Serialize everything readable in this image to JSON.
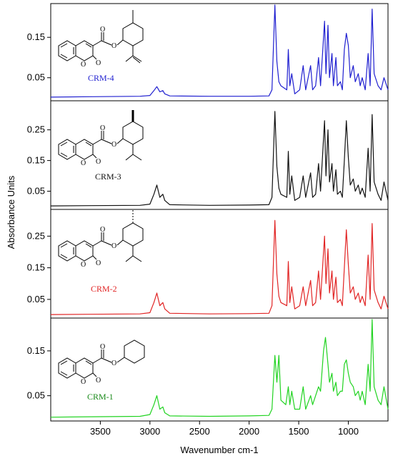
{
  "chart_data": {
    "type": "line",
    "xlabel": "Wavenumber cm-1",
    "ylabel": "Absorbance Units",
    "x_ticks": [
      3500,
      3000,
      2500,
      2000,
      1500,
      1000
    ],
    "xlim": [
      4000,
      600
    ],
    "panels": [
      {
        "name": "CRM-4",
        "color": "#1f1fd0",
        "ylim": [
          0.0,
          0.23
        ],
        "y_ticks": [
          0.05,
          0.15
        ],
        "y_tick_labels": [
          "0.05",
          "0.15"
        ],
        "points": [
          [
            4000,
            0.002
          ],
          [
            3600,
            0.003
          ],
          [
            3100,
            0.004
          ],
          [
            3000,
            0.006
          ],
          [
            2960,
            0.018
          ],
          [
            2930,
            0.028
          ],
          [
            2900,
            0.015
          ],
          [
            2870,
            0.018
          ],
          [
            2850,
            0.01
          ],
          [
            2800,
            0.005
          ],
          [
            2400,
            0.004
          ],
          [
            2000,
            0.004
          ],
          [
            1800,
            0.005
          ],
          [
            1770,
            0.02
          ],
          [
            1740,
            0.23
          ],
          [
            1720,
            0.09
          ],
          [
            1700,
            0.04
          ],
          [
            1680,
            0.03
          ],
          [
            1620,
            0.02
          ],
          [
            1605,
            0.12
          ],
          [
            1590,
            0.03
          ],
          [
            1570,
            0.06
          ],
          [
            1540,
            0.01
          ],
          [
            1490,
            0.02
          ],
          [
            1455,
            0.08
          ],
          [
            1430,
            0.02
          ],
          [
            1380,
            0.08
          ],
          [
            1360,
            0.02
          ],
          [
            1330,
            0.03
          ],
          [
            1300,
            0.1
          ],
          [
            1280,
            0.03
          ],
          [
            1240,
            0.19
          ],
          [
            1225,
            0.06
          ],
          [
            1205,
            0.18
          ],
          [
            1190,
            0.05
          ],
          [
            1165,
            0.11
          ],
          [
            1150,
            0.03
          ],
          [
            1125,
            0.1
          ],
          [
            1110,
            0.03
          ],
          [
            1080,
            0.04
          ],
          [
            1060,
            0.02
          ],
          [
            1040,
            0.12
          ],
          [
            1020,
            0.16
          ],
          [
            1000,
            0.13
          ],
          [
            980,
            0.05
          ],
          [
            950,
            0.08
          ],
          [
            930,
            0.04
          ],
          [
            900,
            0.06
          ],
          [
            880,
            0.03
          ],
          [
            860,
            0.05
          ],
          [
            830,
            0.02
          ],
          [
            800,
            0.11
          ],
          [
            780,
            0.03
          ],
          [
            760,
            0.22
          ],
          [
            740,
            0.06
          ],
          [
            700,
            0.03
          ],
          [
            670,
            0.02
          ],
          [
            640,
            0.05
          ],
          [
            600,
            0.02
          ]
        ]
      },
      {
        "name": "CRM-3",
        "color": "#111111",
        "ylim": [
          0.0,
          0.34
        ],
        "y_ticks": [
          0.05,
          0.15,
          0.25
        ],
        "y_tick_labels": [
          "0.05",
          "0.15",
          "0.25"
        ],
        "points": [
          [
            4000,
            0.002
          ],
          [
            3600,
            0.003
          ],
          [
            3100,
            0.004
          ],
          [
            3000,
            0.008
          ],
          [
            2960,
            0.04
          ],
          [
            2930,
            0.07
          ],
          [
            2900,
            0.03
          ],
          [
            2870,
            0.04
          ],
          [
            2850,
            0.02
          ],
          [
            2800,
            0.006
          ],
          [
            2400,
            0.004
          ],
          [
            2000,
            0.005
          ],
          [
            1800,
            0.006
          ],
          [
            1770,
            0.03
          ],
          [
            1740,
            0.31
          ],
          [
            1720,
            0.13
          ],
          [
            1700,
            0.06
          ],
          [
            1680,
            0.04
          ],
          [
            1620,
            0.03
          ],
          [
            1605,
            0.18
          ],
          [
            1590,
            0.04
          ],
          [
            1570,
            0.1
          ],
          [
            1540,
            0.02
          ],
          [
            1490,
            0.03
          ],
          [
            1455,
            0.1
          ],
          [
            1430,
            0.03
          ],
          [
            1380,
            0.11
          ],
          [
            1360,
            0.03
          ],
          [
            1330,
            0.04
          ],
          [
            1300,
            0.14
          ],
          [
            1280,
            0.05
          ],
          [
            1240,
            0.28
          ],
          [
            1225,
            0.1
          ],
          [
            1205,
            0.25
          ],
          [
            1190,
            0.08
          ],
          [
            1165,
            0.14
          ],
          [
            1150,
            0.05
          ],
          [
            1125,
            0.12
          ],
          [
            1110,
            0.04
          ],
          [
            1080,
            0.05
          ],
          [
            1060,
            0.03
          ],
          [
            1040,
            0.15
          ],
          [
            1020,
            0.28
          ],
          [
            1000,
            0.16
          ],
          [
            980,
            0.07
          ],
          [
            950,
            0.09
          ],
          [
            930,
            0.05
          ],
          [
            900,
            0.07
          ],
          [
            880,
            0.04
          ],
          [
            860,
            0.06
          ],
          [
            830,
            0.03
          ],
          [
            800,
            0.19
          ],
          [
            780,
            0.05
          ],
          [
            760,
            0.3
          ],
          [
            740,
            0.08
          ],
          [
            700,
            0.04
          ],
          [
            670,
            0.02
          ],
          [
            640,
            0.08
          ],
          [
            600,
            0.02
          ]
        ]
      },
      {
        "name": "CRM-2",
        "color": "#e12424",
        "ylim": [
          0.0,
          0.33
        ],
        "y_ticks": [
          0.05,
          0.15,
          0.25
        ],
        "y_tick_labels": [
          "0.05",
          "0.15",
          "0.25"
        ],
        "points": [
          [
            4000,
            0.002
          ],
          [
            3600,
            0.003
          ],
          [
            3100,
            0.004
          ],
          [
            3000,
            0.008
          ],
          [
            2960,
            0.04
          ],
          [
            2930,
            0.07
          ],
          [
            2900,
            0.03
          ],
          [
            2870,
            0.04
          ],
          [
            2850,
            0.02
          ],
          [
            2800,
            0.006
          ],
          [
            2400,
            0.004
          ],
          [
            2000,
            0.005
          ],
          [
            1800,
            0.006
          ],
          [
            1770,
            0.03
          ],
          [
            1740,
            0.3
          ],
          [
            1720,
            0.13
          ],
          [
            1700,
            0.06
          ],
          [
            1680,
            0.04
          ],
          [
            1620,
            0.03
          ],
          [
            1605,
            0.17
          ],
          [
            1590,
            0.04
          ],
          [
            1570,
            0.09
          ],
          [
            1540,
            0.02
          ],
          [
            1490,
            0.03
          ],
          [
            1455,
            0.09
          ],
          [
            1430,
            0.03
          ],
          [
            1380,
            0.11
          ],
          [
            1360,
            0.03
          ],
          [
            1330,
            0.04
          ],
          [
            1300,
            0.14
          ],
          [
            1280,
            0.05
          ],
          [
            1240,
            0.25
          ],
          [
            1225,
            0.1
          ],
          [
            1205,
            0.21
          ],
          [
            1190,
            0.07
          ],
          [
            1165,
            0.14
          ],
          [
            1150,
            0.05
          ],
          [
            1125,
            0.12
          ],
          [
            1110,
            0.04
          ],
          [
            1080,
            0.05
          ],
          [
            1060,
            0.03
          ],
          [
            1040,
            0.15
          ],
          [
            1020,
            0.27
          ],
          [
            1000,
            0.16
          ],
          [
            980,
            0.07
          ],
          [
            950,
            0.09
          ],
          [
            930,
            0.05
          ],
          [
            900,
            0.07
          ],
          [
            880,
            0.04
          ],
          [
            860,
            0.06
          ],
          [
            830,
            0.03
          ],
          [
            800,
            0.19
          ],
          [
            780,
            0.05
          ],
          [
            760,
            0.29
          ],
          [
            740,
            0.08
          ],
          [
            700,
            0.04
          ],
          [
            670,
            0.02
          ],
          [
            640,
            0.06
          ],
          [
            600,
            0.02
          ]
        ]
      },
      {
        "name": "CRM-1",
        "color": "#21d321",
        "ylim": [
          0.0,
          0.22
        ],
        "y_ticks": [
          0.05,
          0.15
        ],
        "y_tick_labels": [
          "0.05",
          "0.15"
        ],
        "points": [
          [
            4000,
            0.002
          ],
          [
            3600,
            0.003
          ],
          [
            3100,
            0.004
          ],
          [
            3000,
            0.008
          ],
          [
            2960,
            0.03
          ],
          [
            2930,
            0.05
          ],
          [
            2900,
            0.02
          ],
          [
            2870,
            0.025
          ],
          [
            2850,
            0.012
          ],
          [
            2800,
            0.005
          ],
          [
            2400,
            0.004
          ],
          [
            2000,
            0.005
          ],
          [
            1800,
            0.006
          ],
          [
            1770,
            0.02
          ],
          [
            1740,
            0.14
          ],
          [
            1720,
            0.08
          ],
          [
            1700,
            0.14
          ],
          [
            1680,
            0.04
          ],
          [
            1630,
            0.03
          ],
          [
            1605,
            0.07
          ],
          [
            1590,
            0.03
          ],
          [
            1570,
            0.06
          ],
          [
            1540,
            0.02
          ],
          [
            1490,
            0.02
          ],
          [
            1455,
            0.07
          ],
          [
            1430,
            0.02
          ],
          [
            1380,
            0.05
          ],
          [
            1360,
            0.03
          ],
          [
            1330,
            0.05
          ],
          [
            1300,
            0.07
          ],
          [
            1280,
            0.06
          ],
          [
            1250,
            0.15
          ],
          [
            1230,
            0.18
          ],
          [
            1205,
            0.12
          ],
          [
            1190,
            0.08
          ],
          [
            1165,
            0.1
          ],
          [
            1150,
            0.06
          ],
          [
            1125,
            0.08
          ],
          [
            1110,
            0.05
          ],
          [
            1080,
            0.06
          ],
          [
            1060,
            0.06
          ],
          [
            1040,
            0.12
          ],
          [
            1020,
            0.13
          ],
          [
            1000,
            0.1
          ],
          [
            980,
            0.08
          ],
          [
            950,
            0.07
          ],
          [
            930,
            0.05
          ],
          [
            900,
            0.06
          ],
          [
            880,
            0.04
          ],
          [
            860,
            0.06
          ],
          [
            830,
            0.03
          ],
          [
            800,
            0.12
          ],
          [
            780,
            0.06
          ],
          [
            760,
            0.22
          ],
          [
            740,
            0.07
          ],
          [
            700,
            0.04
          ],
          [
            670,
            0.03
          ],
          [
            640,
            0.07
          ],
          [
            600,
            0.02
          ]
        ]
      }
    ]
  },
  "labels": {
    "crm4": "CRM-4",
    "crm3": "CRM-3",
    "crm2": "CRM-2",
    "crm1": "CRM-1"
  }
}
